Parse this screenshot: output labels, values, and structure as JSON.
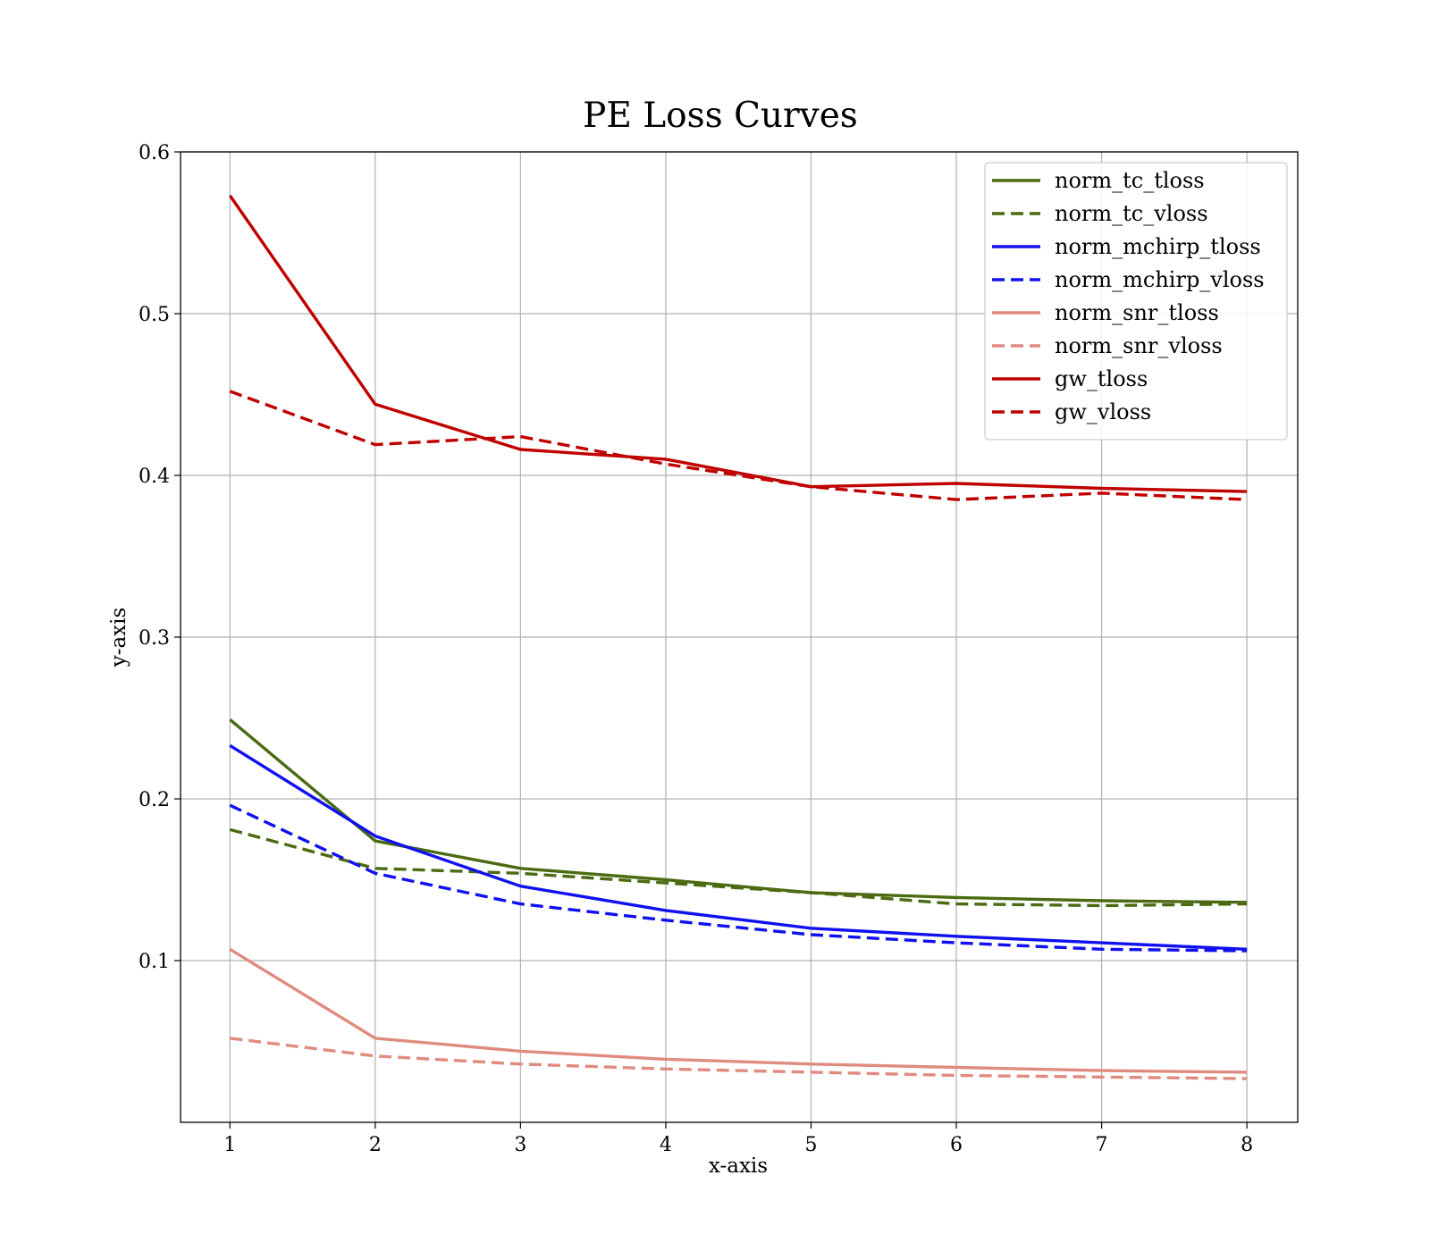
{
  "chart_data": {
    "type": "line",
    "title": "PE Loss Curves",
    "xlabel": "x-axis",
    "ylabel": "y-axis",
    "xlim": [
      0.66,
      8.35
    ],
    "ylim": [
      0.0,
      0.6
    ],
    "x_ticks": [
      1,
      2,
      3,
      4,
      5,
      6,
      7,
      8
    ],
    "y_ticks": [
      0.1,
      0.2,
      0.3,
      0.4,
      0.5,
      0.6
    ],
    "y_tick_labels": [
      "0.1",
      "0.2",
      "0.3",
      "0.4",
      "0.5",
      "0.6"
    ],
    "grid": true,
    "legend_position": "top-right",
    "x": [
      1,
      2,
      3,
      4,
      5,
      6,
      7,
      8
    ],
    "series": [
      {
        "name": "norm_tc_tloss",
        "color": "#4b6b12",
        "dashed": false,
        "values": [
          0.249,
          0.174,
          0.157,
          0.15,
          0.142,
          0.139,
          0.137,
          0.136
        ]
      },
      {
        "name": "norm_tc_vloss",
        "color": "#4b6b12",
        "dashed": true,
        "values": [
          0.181,
          0.157,
          0.154,
          0.148,
          0.142,
          0.135,
          0.134,
          0.135
        ]
      },
      {
        "name": "norm_mchirp_tloss",
        "color": "#1010f0",
        "dashed": false,
        "values": [
          0.233,
          0.177,
          0.146,
          0.131,
          0.12,
          0.115,
          0.111,
          0.107
        ]
      },
      {
        "name": "norm_mchirp_vloss",
        "color": "#1010f0",
        "dashed": true,
        "values": [
          0.196,
          0.154,
          0.135,
          0.125,
          0.116,
          0.111,
          0.107,
          0.106
        ]
      },
      {
        "name": "norm_snr_tloss",
        "color": "#e08b80",
        "dashed": false,
        "values": [
          0.107,
          0.052,
          0.044,
          0.039,
          0.036,
          0.034,
          0.032,
          0.031
        ]
      },
      {
        "name": "norm_snr_vloss",
        "color": "#e08b80",
        "dashed": true,
        "values": [
          0.052,
          0.041,
          0.036,
          0.033,
          0.031,
          0.029,
          0.028,
          0.027
        ]
      },
      {
        "name": "gw_tloss",
        "color": "#c00000",
        "dashed": false,
        "values": [
          0.573,
          0.444,
          0.416,
          0.41,
          0.393,
          0.395,
          0.392,
          0.39
        ]
      },
      {
        "name": "gw_vloss",
        "color": "#c00000",
        "dashed": true,
        "values": [
          0.452,
          0.419,
          0.424,
          0.407,
          0.393,
          0.385,
          0.389,
          0.385
        ]
      }
    ]
  }
}
